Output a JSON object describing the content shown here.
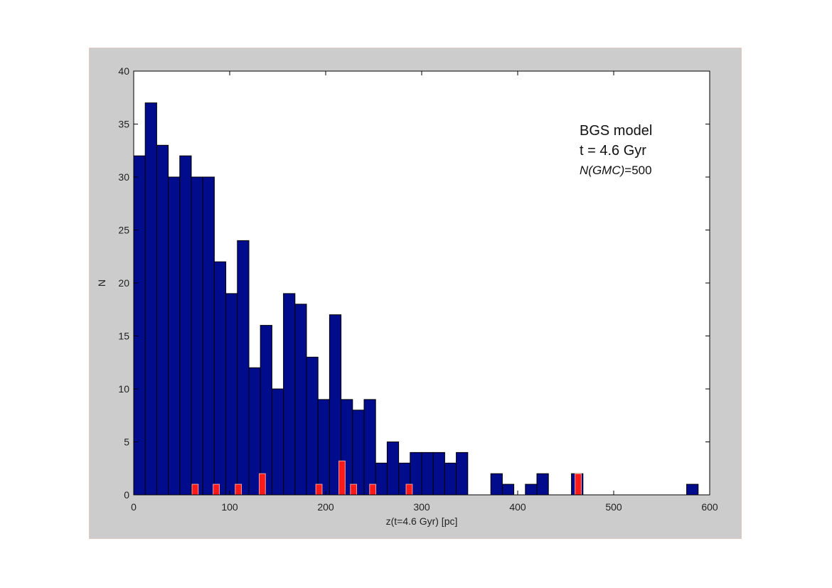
{
  "chart_data": {
    "type": "bar",
    "title": "",
    "xlabel": "z(t=4.6 Gyr) [pc]",
    "ylabel": "N",
    "xlim": [
      0,
      600
    ],
    "ylim": [
      0,
      40
    ],
    "xticks": [
      0,
      100,
      200,
      300,
      400,
      500,
      600
    ],
    "yticks": [
      0,
      5,
      10,
      15,
      20,
      25,
      30,
      35,
      40
    ],
    "grid": false,
    "bin_width": 12,
    "annotations": {
      "line1": "BGS model",
      "line2": "t = 4.6 Gyr",
      "line3_italic": "N(GMC)",
      "line3_rest": "=500"
    },
    "series": [
      {
        "color": "#000c8c",
        "x": [
          6,
          18,
          30,
          42,
          54,
          66,
          78,
          90,
          102,
          114,
          126,
          138,
          150,
          162,
          174,
          186,
          198,
          210,
          222,
          234,
          246,
          258,
          270,
          282,
          294,
          306,
          318,
          330,
          342,
          378,
          390,
          414,
          426,
          462,
          582
        ],
        "values": [
          32,
          37,
          33,
          30,
          32,
          30,
          30,
          22,
          19,
          24,
          12,
          16,
          10,
          19,
          18,
          13,
          9,
          17,
          9,
          8,
          9,
          3,
          5,
          3,
          4,
          4,
          4,
          3,
          4,
          2,
          1,
          1,
          2,
          2,
          1
        ]
      },
      {
        "color": "#ff1a1a",
        "x": [
          64,
          86,
          109,
          134,
          193,
          217,
          229,
          249,
          287,
          463
        ],
        "values": [
          1,
          1,
          1,
          2,
          1,
          3.2,
          1,
          1,
          1,
          2
        ]
      }
    ]
  }
}
